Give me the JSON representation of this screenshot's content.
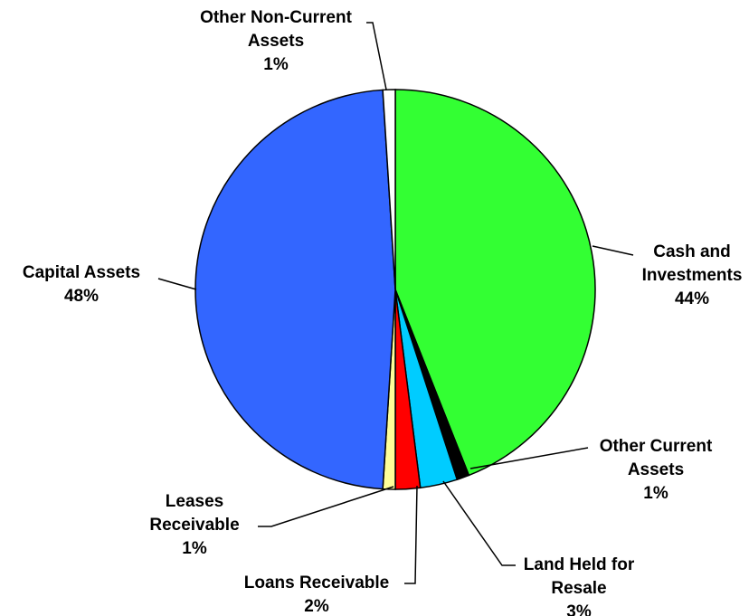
{
  "chart_data": {
    "type": "pie",
    "categories": [
      "Cash and Investments",
      "Other Current Assets",
      "Land Held for Resale",
      "Loans Receivable",
      "Leases Receivable",
      "Capital Assets",
      "Other Non-Current Assets"
    ],
    "values": [
      44,
      1,
      3,
      2,
      1,
      48,
      1
    ],
    "value_labels": [
      "44%",
      "1%",
      "3%",
      "2%",
      "1%",
      "48%",
      "1%"
    ],
    "colors": [
      "#33ff33",
      "#000000",
      "#00ccff",
      "#ff0000",
      "#ffff99",
      "#3366ff",
      "#ffffff"
    ]
  }
}
